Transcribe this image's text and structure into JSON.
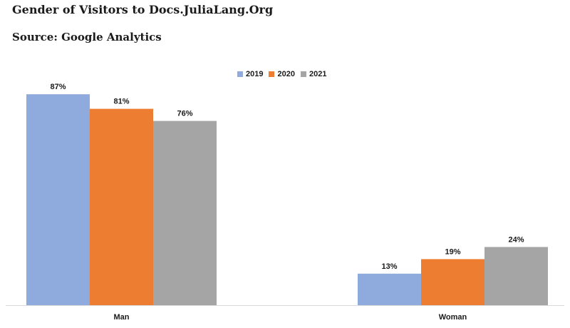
{
  "title": "Gender of Visitors to Docs.JuliaLang.Org",
  "subtitle": "Source: Google Analytics",
  "legend": [
    {
      "label": "2019",
      "color": "#8FAADC"
    },
    {
      "label": "2020",
      "color": "#ED7D31"
    },
    {
      "label": "2021",
      "color": "#A5A5A5"
    }
  ],
  "chart_data": {
    "type": "bar",
    "title": "Gender of Visitors to Docs.JuliaLang.Org",
    "subtitle": "Source: Google Analytics",
    "categories": [
      "Man",
      "Woman"
    ],
    "series": [
      {
        "name": "2019",
        "values": [
          87,
          13
        ],
        "labels": [
          "87%",
          "13%"
        ],
        "color": "#8FAADC"
      },
      {
        "name": "2020",
        "values": [
          81,
          19
        ],
        "labels": [
          "81%",
          "19%"
        ],
        "color": "#ED7D31"
      },
      {
        "name": "2021",
        "values": [
          76,
          24
        ],
        "labels": [
          "76%",
          "24%"
        ],
        "color": "#A5A5A5"
      }
    ],
    "ylim": [
      0,
      100
    ],
    "grid": false,
    "legend_position": "top"
  }
}
